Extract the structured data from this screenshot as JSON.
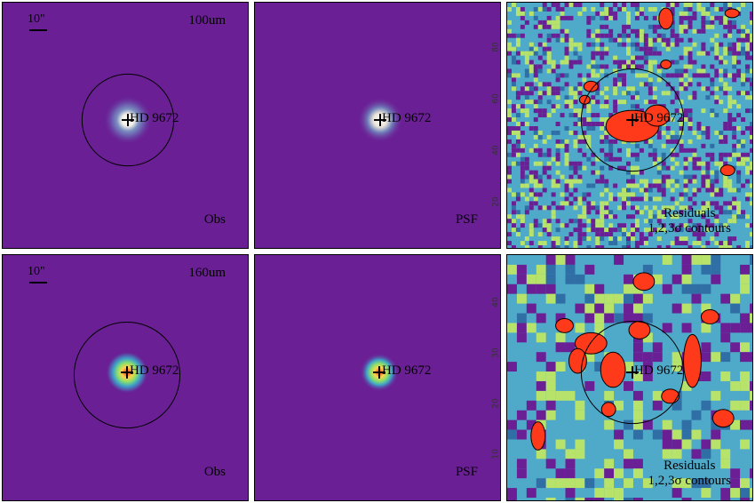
{
  "panels": {
    "obs_100": {
      "scale_label": "10\"",
      "band": "100um",
      "star": "HD 9672",
      "kind": "Obs"
    },
    "psf_100": {
      "star": "HD 9672",
      "kind": "PSF",
      "ticks": [
        "80",
        "60",
        "40",
        "20"
      ]
    },
    "res_100": {
      "star": "HD 9672",
      "line1": "Residuals",
      "line2": "1,2,3σ contours"
    },
    "obs_160": {
      "scale_label": "10\"",
      "band": "160um",
      "star": "HD 9672",
      "kind": "Obs"
    },
    "psf_160": {
      "star": "HD 9672",
      "kind": "PSF",
      "ticks": [
        "40",
        "30",
        "20",
        "10"
      ]
    },
    "res_160": {
      "star": "HD 9672",
      "line1": "Residuals",
      "line2": "1,2,3σ contours"
    }
  },
  "colors": {
    "background": "#6a1f94",
    "core_hot": "#ff2a1a",
    "residual_cyan": "#4fa9c9",
    "residual_green": "#b7e36b",
    "residual_red": "#ff3a1a",
    "contour": "#000000"
  }
}
